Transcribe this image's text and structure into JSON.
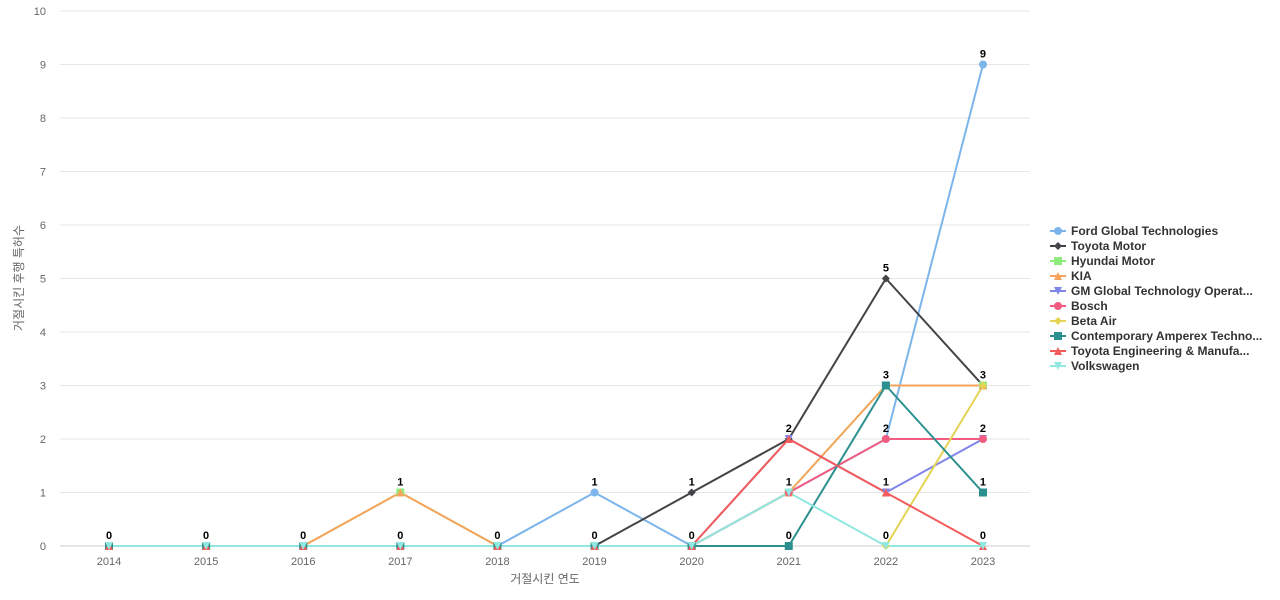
{
  "chart_data": {
    "type": "line",
    "x": [
      "2014",
      "2015",
      "2016",
      "2017",
      "2018",
      "2019",
      "2020",
      "2021",
      "2022",
      "2023"
    ],
    "xlabel": "거절시킨 연도",
    "ylabel": "거절시킨 후행 특허수",
    "ylim": [
      0,
      10
    ],
    "yticks": [
      0,
      1,
      2,
      3,
      4,
      5,
      6,
      7,
      8,
      9,
      10
    ],
    "grid": true,
    "legend_position": "right",
    "series": [
      {
        "name": "Ford Global Technologies",
        "color": "#7cb5ec",
        "marker": "circle",
        "values": [
          0,
          0,
          0,
          0,
          0,
          1,
          0,
          1,
          2,
          9
        ]
      },
      {
        "name": "Toyota Motor",
        "color": "#434348",
        "marker": "diamond",
        "values": [
          null,
          null,
          null,
          null,
          null,
          0,
          1,
          2,
          5,
          3
        ]
      },
      {
        "name": "Hyundai Motor",
        "color": "#90ed7d",
        "marker": "square",
        "values": [
          0,
          0,
          0,
          1,
          0,
          0,
          0,
          1,
          3,
          3
        ]
      },
      {
        "name": "KIA",
        "color": "#f7a35c",
        "marker": "triangle",
        "values": [
          0,
          0,
          0,
          1,
          0,
          0,
          0,
          1,
          3,
          3
        ]
      },
      {
        "name": "GM Global Technology Operat...",
        "color": "#8085e9",
        "marker": "triangle-down",
        "values": [
          0,
          0,
          0,
          0,
          0,
          0,
          0,
          2,
          1,
          2
        ]
      },
      {
        "name": "Bosch",
        "color": "#f15c80",
        "marker": "circle",
        "values": [
          0,
          0,
          0,
          0,
          0,
          0,
          0,
          1,
          2,
          2
        ]
      },
      {
        "name": "Beta Air",
        "color": "#e4d354",
        "marker": "diamond",
        "values": [
          null,
          null,
          null,
          null,
          null,
          null,
          null,
          null,
          0,
          3
        ]
      },
      {
        "name": "Contemporary Amperex Techno...",
        "color": "#2b908f",
        "marker": "square",
        "values": [
          0,
          0,
          0,
          0,
          0,
          0,
          0,
          0,
          3,
          1
        ]
      },
      {
        "name": "Toyota Engineering & Manufa...",
        "color": "#f45b5b",
        "marker": "triangle",
        "values": [
          0,
          0,
          0,
          0,
          0,
          0,
          0,
          2,
          1,
          0
        ]
      },
      {
        "name": "Volkswagen",
        "color": "#91e8e1",
        "marker": "triangle-down",
        "values": [
          0,
          0,
          0,
          0,
          0,
          0,
          0,
          1,
          0,
          0
        ]
      }
    ],
    "data_labels": [
      {
        "x": "2014",
        "text": "0",
        "y": 0
      },
      {
        "x": "2015",
        "text": "0",
        "y": 0
      },
      {
        "x": "2016",
        "text": "0",
        "y": 0
      },
      {
        "x": "2017",
        "text": "1",
        "y": 1
      },
      {
        "x": "2017",
        "text": "0",
        "y": 0
      },
      {
        "x": "2018",
        "text": "0",
        "y": 0
      },
      {
        "x": "2019",
        "text": "1",
        "y": 1
      },
      {
        "x": "2019",
        "text": "0",
        "y": 0
      },
      {
        "x": "2020",
        "text": "1",
        "y": 1
      },
      {
        "x": "2020",
        "text": "0",
        "y": 0
      },
      {
        "x": "2021",
        "text": "2",
        "y": 2
      },
      {
        "x": "2021",
        "text": "1",
        "y": 1
      },
      {
        "x": "2021",
        "text": "0",
        "y": 0
      },
      {
        "x": "2022",
        "text": "5",
        "y": 5
      },
      {
        "x": "2022",
        "text": "3",
        "y": 3
      },
      {
        "x": "2022",
        "text": "2",
        "y": 2
      },
      {
        "x": "2022",
        "text": "1",
        "y": 1
      },
      {
        "x": "2022",
        "text": "0",
        "y": 0
      },
      {
        "x": "2023",
        "text": "9",
        "y": 9
      },
      {
        "x": "2023",
        "text": "3",
        "y": 3
      },
      {
        "x": "2023",
        "text": "2",
        "y": 2
      },
      {
        "x": "2023",
        "text": "1",
        "y": 1
      },
      {
        "x": "2023",
        "text": "0",
        "y": 0
      }
    ]
  }
}
